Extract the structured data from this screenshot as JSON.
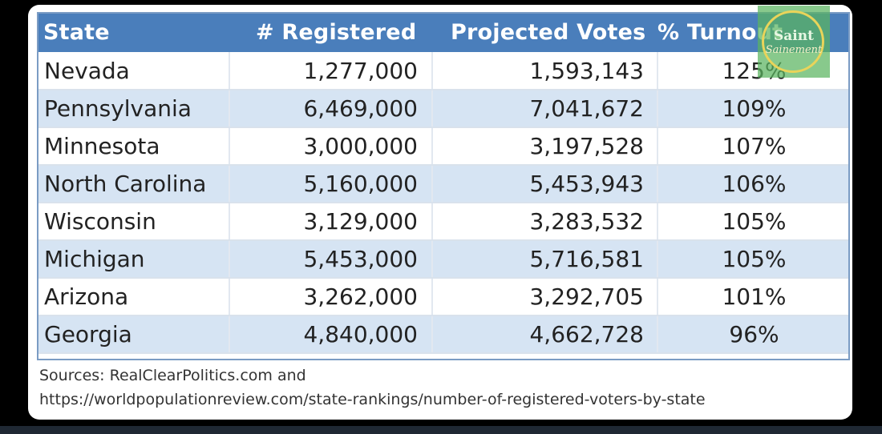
{
  "table": {
    "columns": [
      "State",
      "# Registered",
      "Projected Votes",
      "% Turnout"
    ],
    "rows": [
      {
        "state": "Nevada",
        "registered": "1,277,000",
        "projected": "1,593,143",
        "turnout": "125%"
      },
      {
        "state": "Pennsylvania",
        "registered": "6,469,000",
        "projected": "7,041,672",
        "turnout": "109%"
      },
      {
        "state": "Minnesota",
        "registered": "3,000,000",
        "projected": "3,197,528",
        "turnout": "107%"
      },
      {
        "state": "North Carolina",
        "registered": "5,160,000",
        "projected": "5,453,943",
        "turnout": "106%"
      },
      {
        "state": "Wisconsin",
        "registered": "3,129,000",
        "projected": "3,283,532",
        "turnout": "105%"
      },
      {
        "state": "Michigan",
        "registered": "5,453,000",
        "projected": "5,716,581",
        "turnout": "105%"
      },
      {
        "state": "Arizona",
        "registered": "3,262,000",
        "projected": "3,292,705",
        "turnout": "101%"
      },
      {
        "state": "Georgia",
        "registered": "4,840,000",
        "projected": "4,662,728",
        "turnout": "96%"
      }
    ]
  },
  "sources": {
    "line1": "Sources: RealClearPolitics.com and",
    "line2": "https://worldpopulationreview.com/state-rankings/number-of-registered-voters-by-state"
  },
  "watermark": {
    "top": "Saint",
    "bottom": "Sainement"
  },
  "colors": {
    "header_bg": "#4a7ebb",
    "header_text": "#ffffff",
    "stripe_row": "#d6e4f3",
    "watermark_green": "#5ab45f",
    "watermark_ring": "#e9d45a"
  }
}
